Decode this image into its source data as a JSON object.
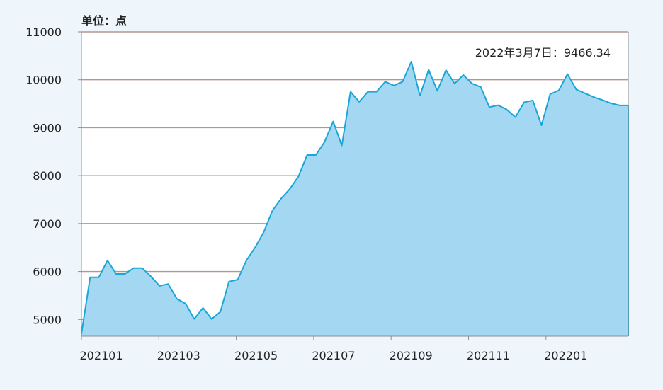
{
  "chart_data": {
    "type": "area",
    "unit_label": "单位：点",
    "annotation": "2022年3月7日：9466.34",
    "ylim": [
      4650,
      11000
    ],
    "y_ticks": [
      5000,
      6000,
      7000,
      8000,
      9000,
      10000,
      11000
    ],
    "x_tick_labels": [
      "202101",
      "202103",
      "202105",
      "202107",
      "202109",
      "202111",
      "202201"
    ],
    "grid": "horizontal",
    "colors": {
      "fill": "#a3d7f2",
      "line": "#1aa6d6",
      "grid": "#b6958f"
    },
    "series": [
      {
        "values": [
          4700,
          5880,
          5880,
          6230,
          5950,
          5950,
          6070,
          6070,
          5900,
          5700,
          5740,
          5430,
          5330,
          5010,
          5240,
          5010,
          5160,
          5790,
          5830,
          6230,
          6500,
          6820,
          7270,
          7520,
          7720,
          7980,
          8430,
          8430,
          8700,
          9130,
          8630,
          9750,
          9540,
          9750,
          9750,
          9960,
          9880,
          9960,
          10380,
          9670,
          10210,
          9770,
          10200,
          9920,
          10100,
          9920,
          9850,
          9430,
          9470,
          9380,
          9220,
          9530,
          9570,
          9050,
          9700,
          9780,
          10120,
          9800,
          9720,
          9640,
          9580,
          9510,
          9466.34,
          9466.34
        ]
      }
    ]
  }
}
